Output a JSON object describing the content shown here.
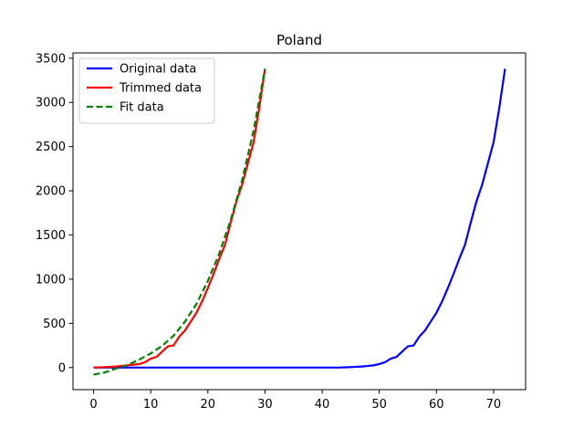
{
  "chart_data": {
    "type": "line",
    "title": "Poland",
    "xlabel": "",
    "ylabel": "",
    "xlim": [
      -3.6,
      75.6
    ],
    "ylim": [
      -250,
      3560
    ],
    "xticks": [
      0,
      10,
      20,
      30,
      40,
      50,
      60,
      70
    ],
    "yticks": [
      0,
      500,
      1000,
      1500,
      2000,
      2500,
      3000,
      3500
    ],
    "grid": false,
    "legend": "top-left",
    "series": [
      {
        "name": "Original data",
        "color": "#0000ff",
        "style": "solid",
        "x": [
          0,
          10,
          20,
          30,
          40,
          43,
          45,
          47,
          48,
          49,
          50,
          51,
          52,
          53,
          54,
          55,
          56,
          57,
          58,
          59,
          60,
          61,
          62,
          63,
          64,
          65,
          66,
          67,
          68,
          69,
          70,
          71,
          72
        ],
        "y": [
          0,
          0,
          0,
          0,
          0,
          0,
          5,
          12,
          18,
          25,
          40,
          60,
          100,
          120,
          180,
          240,
          250,
          350,
          420,
          520,
          620,
          750,
          900,
          1060,
          1230,
          1390,
          1640,
          1880,
          2070,
          2310,
          2550,
          2940,
          3380
        ]
      },
      {
        "name": "Trimmed data",
        "color": "#ff0000",
        "style": "solid",
        "x": [
          0,
          2,
          4,
          6,
          8,
          9,
          10,
          11,
          12,
          13,
          14,
          15,
          16,
          17,
          18,
          19,
          20,
          21,
          22,
          23,
          24,
          25,
          26,
          27,
          28,
          29,
          30
        ],
        "y": [
          0,
          5,
          12,
          25,
          40,
          60,
          100,
          120,
          180,
          240,
          250,
          350,
          420,
          520,
          620,
          750,
          900,
          1060,
          1230,
          1390,
          1640,
          1880,
          2070,
          2310,
          2550,
          2940,
          3380
        ]
      },
      {
        "name": "Fit data",
        "color": "#008000",
        "style": "dashed",
        "x": [
          0,
          2,
          4,
          6,
          8,
          10,
          12,
          14,
          16,
          18,
          20,
          22,
          24,
          26,
          28,
          30
        ],
        "y": [
          -80,
          -55,
          -10,
          30,
          90,
          160,
          245,
          360,
          520,
          720,
          980,
          1290,
          1670,
          2120,
          2680,
          3380
        ]
      }
    ]
  }
}
